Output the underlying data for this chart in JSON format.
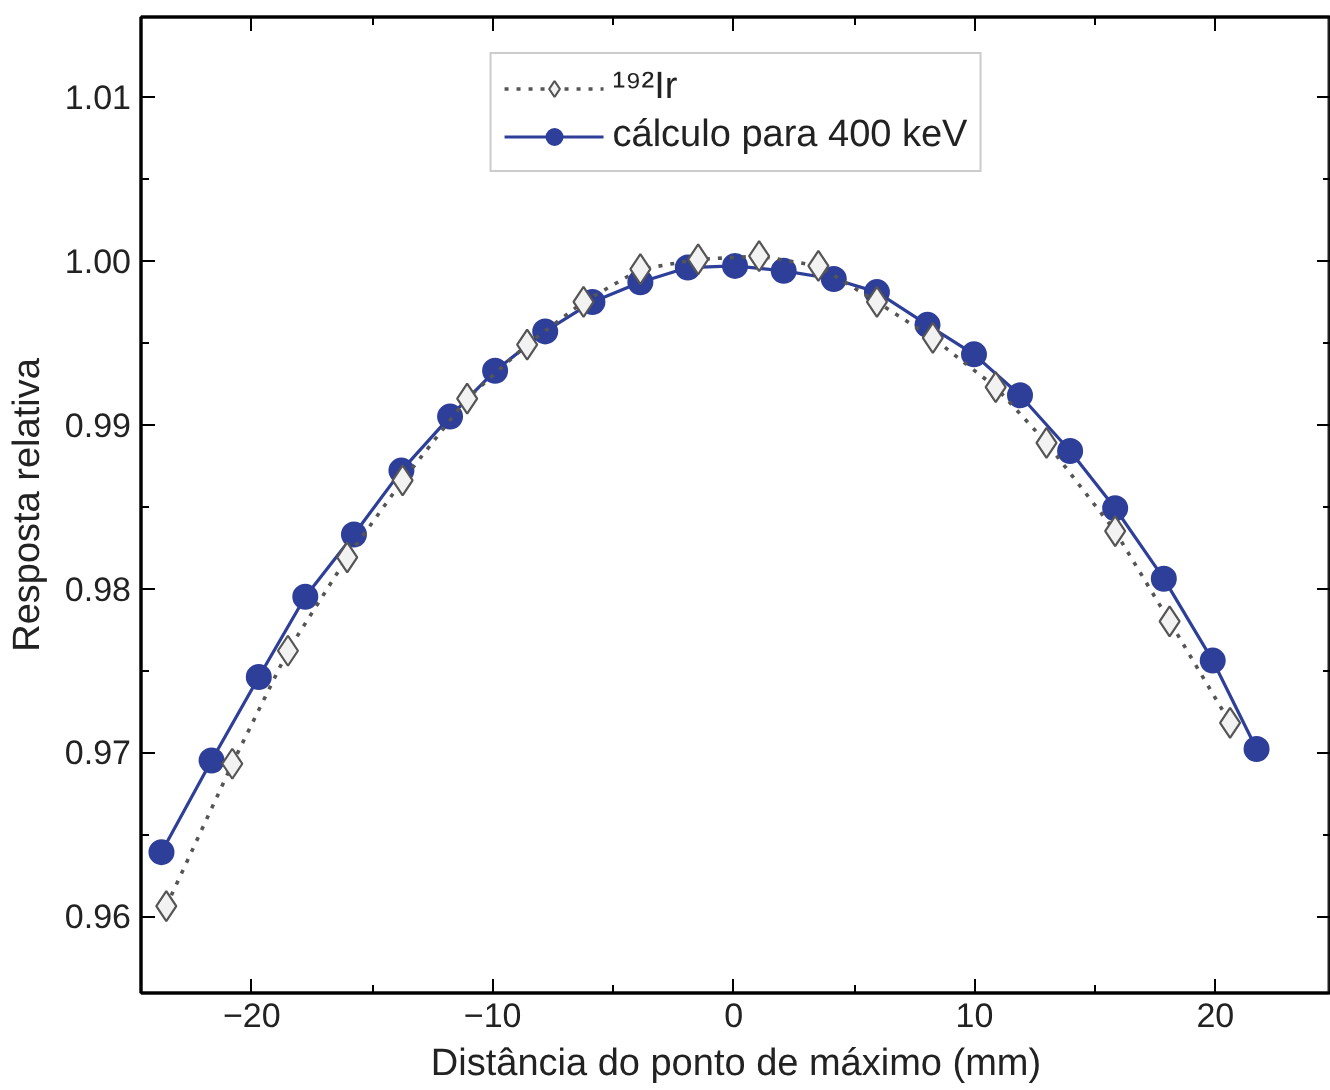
{
  "chart_data": {
    "type": "line",
    "xlabel": "Distância do ponto de máximo (mm)",
    "ylabel": "Resposta relativa",
    "xlim": [
      -24.6,
      24.8
    ],
    "xticks": [
      -20,
      -10,
      0,
      10,
      20
    ],
    "ylim": [
      0.9553,
      1.0149
    ],
    "yticks": [
      {
        "value": 0.96,
        "label": "0.96"
      },
      {
        "value": 0.97,
        "label": "0.97"
      },
      {
        "value": 0.98,
        "label": "0.98"
      },
      {
        "value": 0.99,
        "label": "0.99"
      },
      {
        "value": 1.0,
        "label": "1.00"
      },
      {
        "value": 1.01,
        "label": "1.01"
      }
    ],
    "grid": false,
    "legend": "top",
    "series": [
      {
        "name": "¹⁹²Ir",
        "color": "#555555",
        "marker": "diamond",
        "line_style": "dotted",
        "x": [
          -23.55,
          -20.81,
          -18.5,
          -16.04,
          -13.74,
          -11.06,
          -8.57,
          -6.23,
          -3.87,
          -1.47,
          1.06,
          3.52,
          5.95,
          8.27,
          10.88,
          12.99,
          15.84,
          18.1,
          20.61
        ],
        "values": [
          0.9606,
          0.9693,
          0.9762,
          0.9819,
          0.9866,
          0.9916,
          0.9949,
          0.9975,
          0.9995,
          1.0001,
          1.0003,
          0.9997,
          0.9975,
          0.9953,
          0.9923,
          0.9889,
          0.9835,
          0.978,
          0.9718
        ]
      },
      {
        "name": "cálculo para 400 keV",
        "color": "#2e3f9a",
        "marker": "circle",
        "line_style": "solid",
        "x": [
          -23.75,
          -21.67,
          -19.71,
          -17.78,
          -15.76,
          -13.79,
          -11.77,
          -9.9,
          -7.82,
          -5.86,
          -3.87,
          -1.9,
          0.06,
          2.08,
          4.16,
          5.95,
          8.05,
          9.98,
          11.89,
          13.97,
          15.84,
          17.86,
          19.89,
          21.71
        ],
        "values": [
          0.9639,
          0.9695,
          0.9746,
          0.9795,
          0.9833,
          0.9872,
          0.9905,
          0.9933,
          0.9957,
          0.9975,
          0.9987,
          0.9996,
          0.9997,
          0.9994,
          0.9989,
          0.9981,
          0.9961,
          0.9943,
          0.9918,
          0.9884,
          0.9849,
          0.9806,
          0.9756,
          0.9702
        ]
      }
    ]
  }
}
